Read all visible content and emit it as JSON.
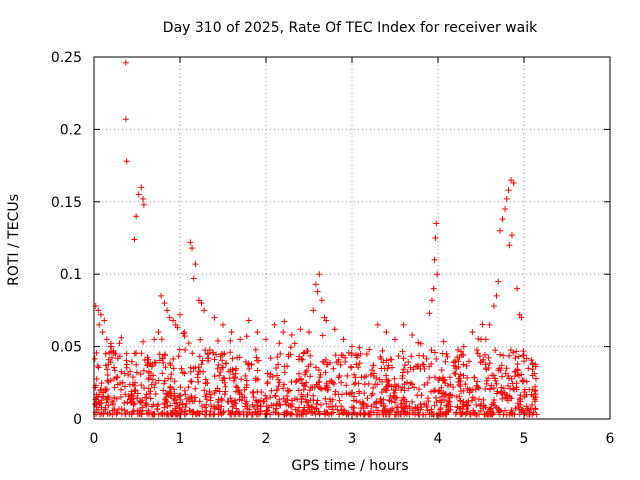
{
  "chart_data": {
    "type": "scatter",
    "title": "Day 310 of 2025, Rate Of TEC Index for receiver waik",
    "xlabel": "GPS time / hours",
    "ylabel": "ROTI / TECUs",
    "xlim": [
      0,
      6
    ],
    "ylim": [
      0,
      0.25
    ],
    "grid": true,
    "marker": "+",
    "color": "#ff0000",
    "x_ticks": [
      {
        "value": 0,
        "label": "0"
      },
      {
        "value": 1,
        "label": "1"
      },
      {
        "value": 2,
        "label": "2"
      },
      {
        "value": 3,
        "label": "3"
      },
      {
        "value": 4,
        "label": "4"
      },
      {
        "value": 5,
        "label": "5"
      },
      {
        "value": 6,
        "label": "6"
      }
    ],
    "y_ticks": [
      {
        "value": 0,
        "label": "0"
      },
      {
        "value": 0.05,
        "label": "0.05"
      },
      {
        "value": 0.1,
        "label": "0.1"
      },
      {
        "value": 0.15,
        "label": "0.15"
      },
      {
        "value": 0.2,
        "label": "0.2"
      },
      {
        "value": 0.25,
        "label": "0.25"
      }
    ],
    "series": [
      {
        "name": "ROTI",
        "points": [
          [
            0.37,
            0.246
          ],
          [
            0.37,
            0.207
          ],
          [
            0.38,
            0.178
          ],
          [
            0.47,
            0.124
          ],
          [
            0.49,
            0.14
          ],
          [
            0.52,
            0.155
          ],
          [
            0.55,
            0.16
          ],
          [
            0.57,
            0.152
          ],
          [
            0.58,
            0.148
          ],
          [
            1.12,
            0.122
          ],
          [
            1.14,
            0.118
          ],
          [
            1.18,
            0.107
          ],
          [
            1.16,
            0.097
          ],
          [
            1.22,
            0.082
          ],
          [
            1.25,
            0.08
          ],
          [
            1.28,
            0.075
          ],
          [
            2.62,
            0.1
          ],
          [
            2.58,
            0.093
          ],
          [
            2.6,
            0.088
          ],
          [
            2.65,
            0.082
          ],
          [
            2.55,
            0.075
          ],
          [
            2.68,
            0.07
          ],
          [
            3.98,
            0.135
          ],
          [
            3.97,
            0.125
          ],
          [
            3.96,
            0.11
          ],
          [
            3.99,
            0.1
          ],
          [
            3.95,
            0.09
          ],
          [
            3.93,
            0.082
          ],
          [
            3.9,
            0.073
          ],
          [
            4.85,
            0.165
          ],
          [
            4.88,
            0.163
          ],
          [
            4.82,
            0.158
          ],
          [
            4.8,
            0.152
          ],
          [
            4.78,
            0.145
          ],
          [
            4.75,
            0.138
          ],
          [
            4.72,
            0.13
          ],
          [
            4.86,
            0.127
          ],
          [
            4.83,
            0.12
          ],
          [
            4.7,
            0.095
          ],
          [
            4.92,
            0.09
          ],
          [
            4.95,
            0.072
          ],
          [
            4.97,
            0.07
          ],
          [
            4.68,
            0.085
          ],
          [
            4.65,
            0.078
          ],
          [
            0.02,
            0.078
          ],
          [
            0.05,
            0.075
          ],
          [
            0.08,
            0.072
          ],
          [
            0.12,
            0.068
          ],
          [
            0.06,
            0.065
          ],
          [
            0.1,
            0.06
          ],
          [
            0.15,
            0.055
          ],
          [
            0.2,
            0.05
          ],
          [
            0.25,
            0.045
          ],
          [
            0.78,
            0.085
          ],
          [
            0.82,
            0.08
          ],
          [
            0.85,
            0.075
          ],
          [
            0.88,
            0.07
          ],
          [
            0.92,
            0.068
          ],
          [
            0.95,
            0.065
          ],
          [
            1.0,
            0.072
          ],
          [
            1.05,
            0.06
          ],
          [
            0.75,
            0.06
          ],
          [
            0.7,
            0.055
          ],
          [
            1.4,
            0.07
          ],
          [
            1.5,
            0.065
          ],
          [
            1.6,
            0.06
          ],
          [
            1.7,
            0.055
          ],
          [
            1.8,
            0.068
          ],
          [
            1.9,
            0.06
          ],
          [
            2.0,
            0.055
          ],
          [
            2.1,
            0.065
          ],
          [
            2.2,
            0.06
          ],
          [
            2.3,
            0.058
          ],
          [
            2.4,
            0.062
          ],
          [
            2.5,
            0.06
          ],
          [
            2.7,
            0.068
          ],
          [
            2.8,
            0.062
          ],
          [
            2.9,
            0.055
          ],
          [
            3.0,
            0.05
          ],
          [
            3.1,
            0.045
          ],
          [
            3.2,
            0.048
          ],
          [
            3.3,
            0.065
          ],
          [
            3.4,
            0.06
          ],
          [
            3.5,
            0.055
          ],
          [
            3.6,
            0.065
          ],
          [
            3.7,
            0.058
          ],
          [
            3.8,
            0.052
          ],
          [
            4.1,
            0.045
          ],
          [
            4.2,
            0.04
          ],
          [
            4.3,
            0.05
          ],
          [
            4.4,
            0.06
          ],
          [
            4.5,
            0.055
          ],
          [
            4.6,
            0.065
          ],
          [
            5.0,
            0.04
          ],
          [
            5.05,
            0.035
          ],
          [
            5.1,
            0.03
          ],
          [
            5.13,
            0.02
          ]
        ]
      }
    ]
  }
}
